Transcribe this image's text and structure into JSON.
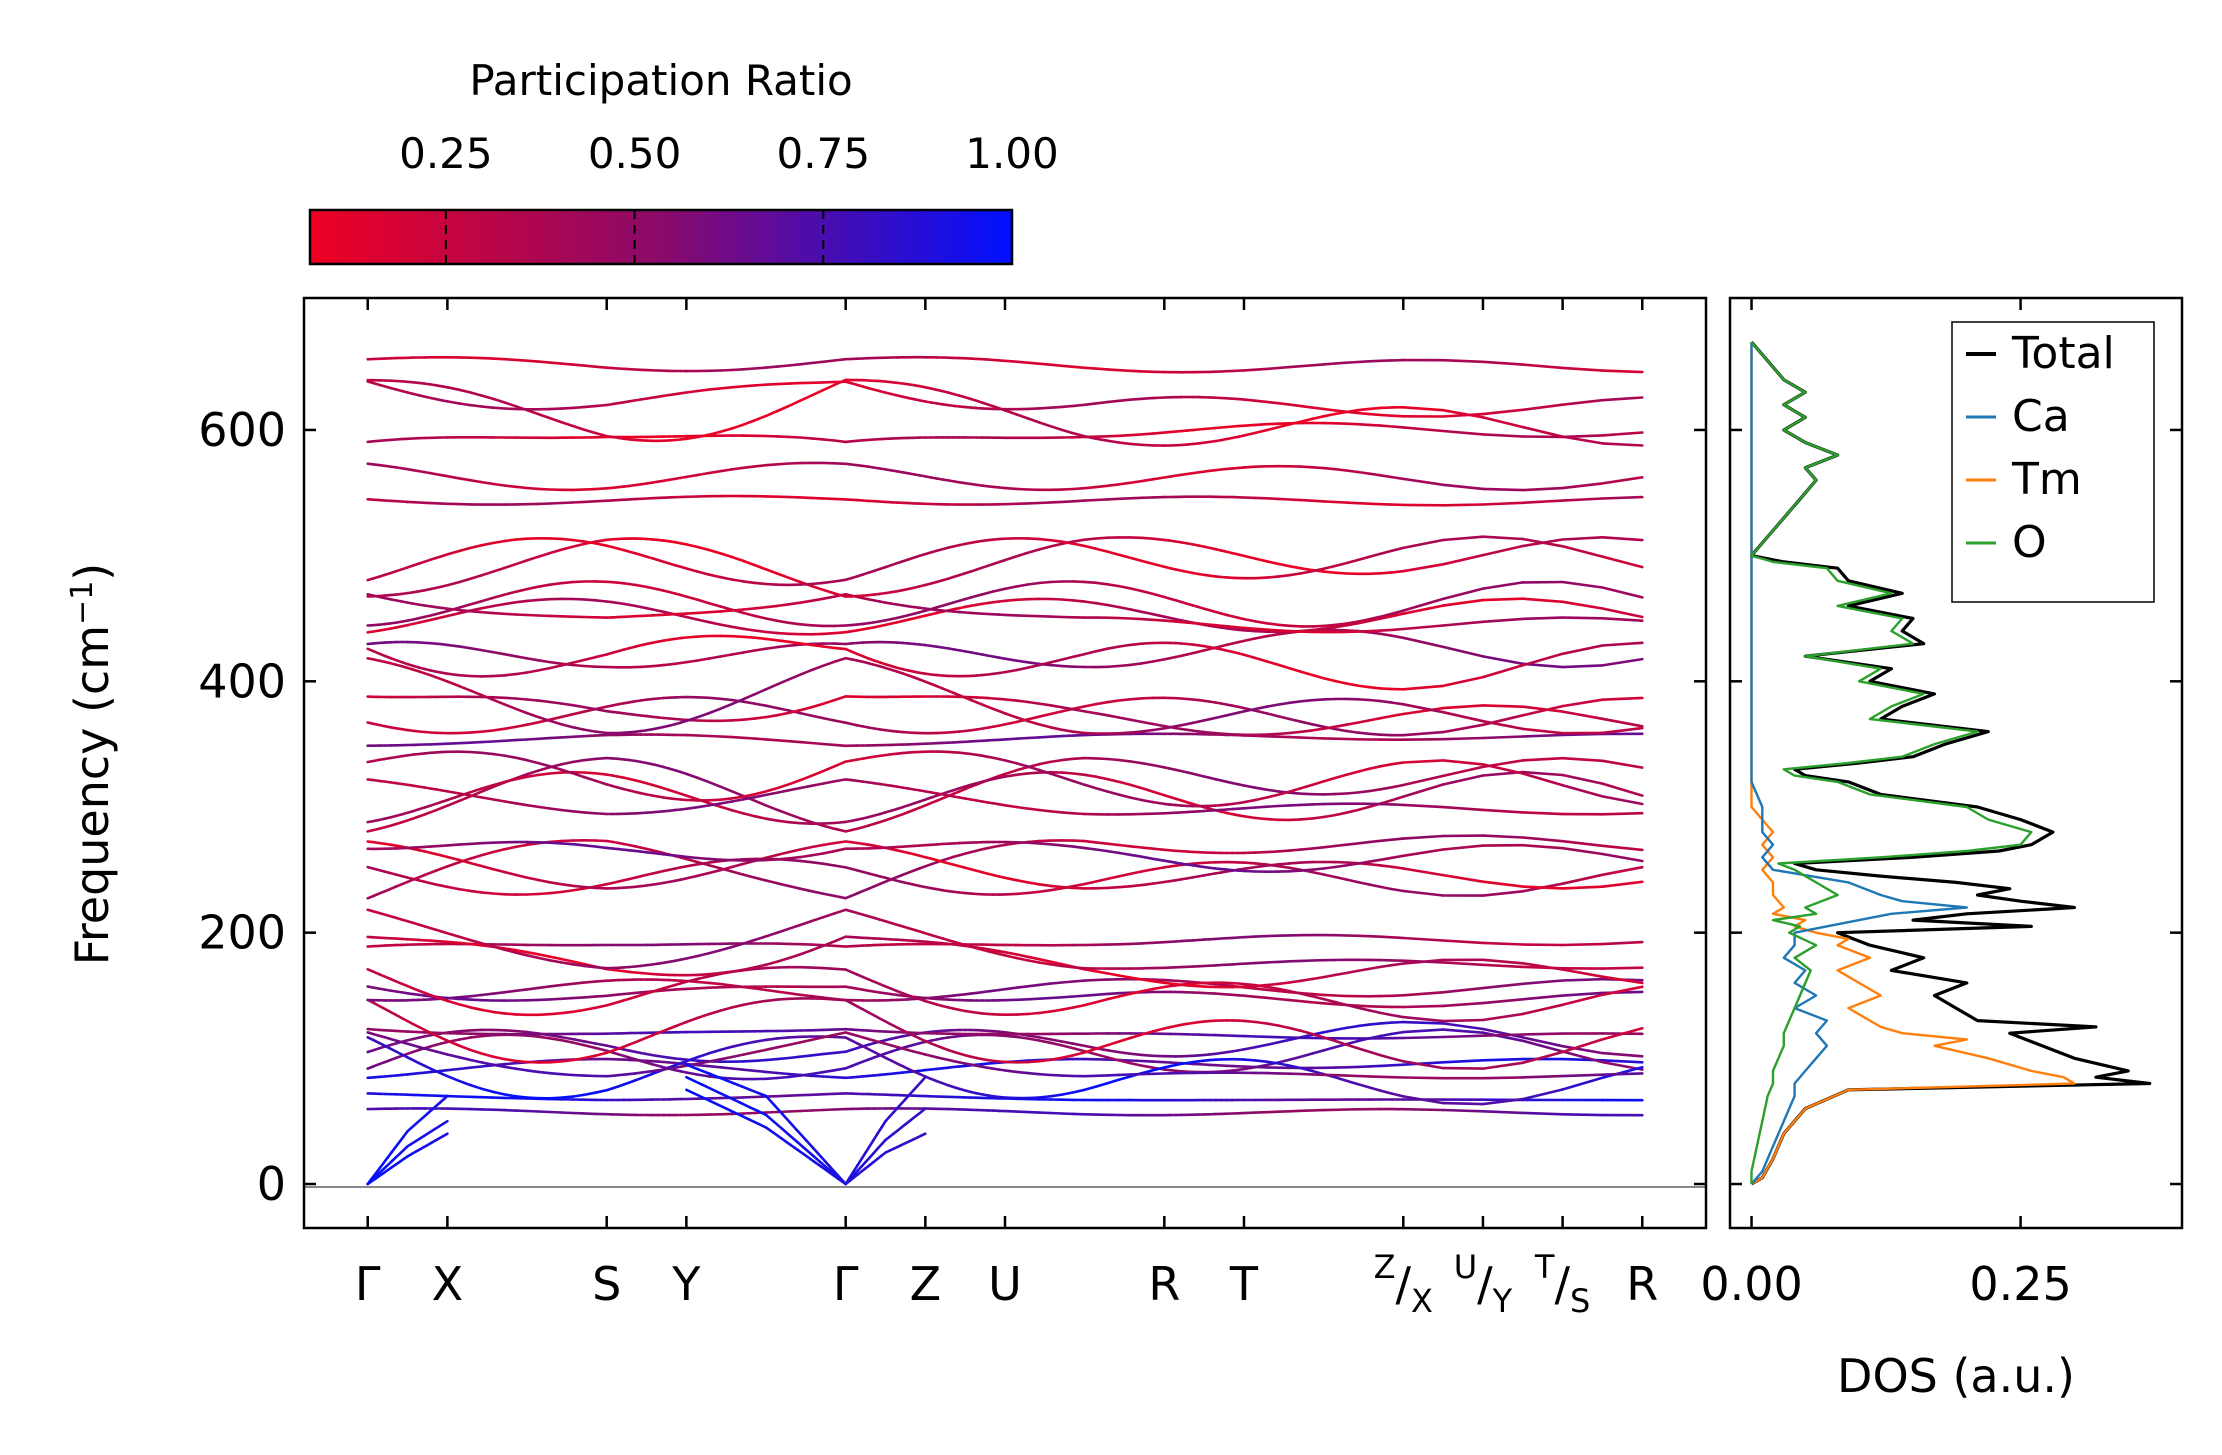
{
  "colorbar": {
    "label": "Participation Ratio",
    "ticks": [
      "0.25",
      "0.50",
      "0.75",
      "1.00"
    ],
    "tick_values": [
      0.25,
      0.5,
      0.75,
      1.0
    ],
    "range": [
      0.07,
      1.0
    ],
    "colors": {
      "low": "#ee0022",
      "mid": "#8a0a6a",
      "high": "#0010ff"
    }
  },
  "chart_data": [
    {
      "type": "line",
      "name": "phonon band structure",
      "ylabel": "Frequency (cm",
      "ylabel_sup": "−1",
      "ylabel_close": ")",
      "ylim": [
        -35,
        705
      ],
      "yticks": [
        "0",
        "200",
        "400",
        "600"
      ],
      "ytick_values": [
        0,
        200,
        400,
        600
      ],
      "x_path": {
        "points": [
          0,
          0.5,
          1.5,
          2.0,
          3.0,
          3.5,
          4.0,
          5.0,
          5.5,
          6.5,
          7.0,
          7.5,
          8.0
        ],
        "labels": [
          "Γ",
          "X",
          "S",
          "Y",
          "Γ",
          "Z",
          "U",
          "R",
          "T",
          "Z/X",
          "U/Y",
          "T/S",
          "R"
        ],
        "label_text": [
          "Γ",
          "X",
          "S",
          "Y",
          "Γ",
          "Z",
          "U",
          "R",
          "T",
          "",
          "",
          "",
          "R"
        ],
        "discontinuities": [
          6.5,
          7.0,
          7.5
        ],
        "disc_labels": [
          {
            "a": "Z",
            "b": "X"
          },
          {
            "a": "U",
            "b": "Y"
          },
          {
            "a": "T",
            "b": "S"
          }
        ]
      },
      "xlim": [
        -0.4,
        8.4
      ],
      "color_by": "participation ratio",
      "acoustic_branches": [
        {
          "segment": "Γ-X",
          "x": [
            0,
            0.25,
            0.5
          ],
          "y": [
            0,
            42,
            70
          ],
          "pr": 1.0
        },
        {
          "segment": "Γ-X",
          "x": [
            0,
            0.25,
            0.5
          ],
          "y": [
            0,
            30,
            50
          ],
          "pr": 1.0
        },
        {
          "segment": "Γ-X",
          "x": [
            0,
            0.25,
            0.5
          ],
          "y": [
            0,
            22,
            40
          ],
          "pr": 1.0
        },
        {
          "segment": "Y-Γ",
          "x": [
            2.0,
            2.5,
            3.0
          ],
          "y": [
            95,
            70,
            0
          ],
          "pr": 1.0
        },
        {
          "segment": "Y-Γ",
          "x": [
            2.0,
            2.5,
            3.0
          ],
          "y": [
            85,
            55,
            0
          ],
          "pr": 1.0
        },
        {
          "segment": "Y-Γ",
          "x": [
            2.0,
            2.5,
            3.0
          ],
          "y": [
            75,
            45,
            0
          ],
          "pr": 1.0
        },
        {
          "segment": "Γ-Z",
          "x": [
            3.0,
            3.25,
            3.5
          ],
          "y": [
            0,
            50,
            85
          ],
          "pr": 0.9
        },
        {
          "segment": "Γ-Z",
          "x": [
            3.0,
            3.25,
            3.5
          ],
          "y": [
            0,
            35,
            60
          ],
          "pr": 0.9
        },
        {
          "segment": "Γ-Z",
          "x": [
            3.0,
            3.25,
            3.5
          ],
          "y": [
            0,
            25,
            40
          ],
          "pr": 0.9
        }
      ],
      "optical_band_frequencies_at_gamma": [
        58,
        72,
        88,
        92,
        100,
        110,
        120,
        125,
        140,
        152,
        160,
        168,
        185,
        200,
        215,
        230,
        248,
        262,
        275,
        295,
        305,
        318,
        335,
        350,
        375,
        395,
        405,
        415,
        435,
        450,
        462,
        475,
        480,
        490,
        545,
        565,
        585,
        632,
        640,
        655
      ]
    },
    {
      "type": "line",
      "name": "phonon density of states",
      "xlabel": "DOS (a.u.)",
      "xticks": [
        "0.00",
        "0.25"
      ],
      "xtick_values": [
        0.0,
        0.25
      ],
      "xlim": [
        -0.02,
        0.4
      ],
      "ylim": [
        -35,
        705
      ],
      "legend": {
        "placement": "top-right",
        "entries": [
          "Total",
          "Ca",
          "Tm",
          "O"
        ]
      },
      "series": [
        {
          "name": "Total",
          "color": "#000000",
          "freq": [
            0,
            5,
            20,
            40,
            60,
            75,
            80,
            85,
            90,
            100,
            110,
            120,
            125,
            130,
            140,
            150,
            160,
            170,
            180,
            190,
            200,
            205,
            210,
            215,
            220,
            225,
            230,
            235,
            240,
            245,
            250,
            255,
            260,
            265,
            270,
            280,
            290,
            300,
            310,
            320,
            325,
            330,
            335,
            340,
            350,
            360,
            370,
            380,
            390,
            400,
            410,
            420,
            430,
            440,
            450,
            460,
            470,
            480,
            490,
            495,
            500,
            520,
            540,
            560,
            570,
            580,
            590,
            600,
            610,
            620,
            630,
            640,
            650,
            660,
            670
          ],
          "dos": [
            0.0,
            0.01,
            0.02,
            0.03,
            0.05,
            0.09,
            0.37,
            0.32,
            0.35,
            0.3,
            0.27,
            0.24,
            0.32,
            0.21,
            0.19,
            0.17,
            0.2,
            0.13,
            0.16,
            0.11,
            0.08,
            0.26,
            0.15,
            0.2,
            0.3,
            0.25,
            0.21,
            0.24,
            0.19,
            0.12,
            0.06,
            0.04,
            0.15,
            0.23,
            0.26,
            0.28,
            0.25,
            0.21,
            0.12,
            0.09,
            0.05,
            0.04,
            0.1,
            0.15,
            0.18,
            0.22,
            0.12,
            0.14,
            0.17,
            0.11,
            0.13,
            0.05,
            0.16,
            0.14,
            0.15,
            0.09,
            0.14,
            0.09,
            0.08,
            0.03,
            0.0,
            0.02,
            0.04,
            0.06,
            0.05,
            0.08,
            0.05,
            0.03,
            0.05,
            0.03,
            0.05,
            0.03,
            0.02,
            0.01,
            0.0
          ]
        },
        {
          "name": "Ca",
          "color": "#1f77b4",
          "freq": [
            0,
            10,
            30,
            50,
            70,
            80,
            90,
            100,
            110,
            120,
            130,
            140,
            150,
            160,
            170,
            180,
            190,
            200,
            210,
            215,
            220,
            225,
            230,
            240,
            250,
            260,
            270,
            280,
            300,
            320,
            360,
            400,
            440,
            480,
            500,
            540,
            600,
            670
          ],
          "dos": [
            0.0,
            0.01,
            0.02,
            0.03,
            0.04,
            0.04,
            0.05,
            0.06,
            0.07,
            0.06,
            0.07,
            0.04,
            0.06,
            0.04,
            0.05,
            0.03,
            0.04,
            0.04,
            0.1,
            0.13,
            0.2,
            0.14,
            0.12,
            0.09,
            0.02,
            0.01,
            0.02,
            0.01,
            0.01,
            0.0,
            0.0,
            0.0,
            0.0,
            0.0,
            0.0,
            0.0,
            0.0,
            0.0
          ]
        },
        {
          "name": "Tm",
          "color": "#ff7f0e",
          "freq": [
            0,
            5,
            20,
            40,
            60,
            75,
            80,
            85,
            90,
            100,
            110,
            115,
            120,
            125,
            130,
            140,
            150,
            160,
            170,
            180,
            190,
            195,
            200,
            205,
            210,
            215,
            220,
            230,
            240,
            250,
            260,
            270,
            280,
            300,
            320,
            400,
            500,
            670
          ],
          "dos": [
            0.0,
            0.01,
            0.02,
            0.03,
            0.05,
            0.09,
            0.3,
            0.29,
            0.26,
            0.22,
            0.17,
            0.2,
            0.14,
            0.12,
            0.11,
            0.09,
            0.12,
            0.1,
            0.08,
            0.11,
            0.08,
            0.09,
            0.06,
            0.04,
            0.05,
            0.02,
            0.03,
            0.02,
            0.02,
            0.01,
            0.02,
            0.01,
            0.02,
            0.0,
            0.0,
            0.0,
            0.0,
            0.0
          ]
        },
        {
          "name": "O",
          "color": "#2ca02c",
          "freq": [
            0,
            10,
            30,
            50,
            70,
            80,
            90,
            100,
            110,
            120,
            130,
            140,
            150,
            160,
            170,
            180,
            190,
            200,
            205,
            210,
            215,
            220,
            230,
            240,
            250,
            255,
            260,
            265,
            270,
            280,
            290,
            300,
            310,
            320,
            325,
            330,
            335,
            340,
            350,
            360,
            370,
            380,
            390,
            400,
            410,
            420,
            430,
            440,
            450,
            460,
            470,
            480,
            490,
            495,
            500,
            520,
            540,
            560,
            570,
            580,
            590,
            600,
            610,
            620,
            630,
            640,
            650,
            660,
            670
          ],
          "dos": [
            0.0,
            0.0,
            0.005,
            0.01,
            0.015,
            0.02,
            0.02,
            0.025,
            0.03,
            0.03,
            0.035,
            0.04,
            0.045,
            0.05,
            0.055,
            0.04,
            0.06,
            0.035,
            0.045,
            0.02,
            0.06,
            0.05,
            0.08,
            0.06,
            0.04,
            0.025,
            0.12,
            0.2,
            0.25,
            0.26,
            0.22,
            0.2,
            0.11,
            0.08,
            0.04,
            0.03,
            0.09,
            0.14,
            0.17,
            0.21,
            0.11,
            0.13,
            0.16,
            0.1,
            0.12,
            0.05,
            0.15,
            0.13,
            0.14,
            0.08,
            0.13,
            0.08,
            0.07,
            0.02,
            0.0,
            0.02,
            0.04,
            0.06,
            0.05,
            0.08,
            0.05,
            0.03,
            0.05,
            0.03,
            0.05,
            0.03,
            0.02,
            0.01,
            0.0
          ]
        }
      ]
    }
  ]
}
